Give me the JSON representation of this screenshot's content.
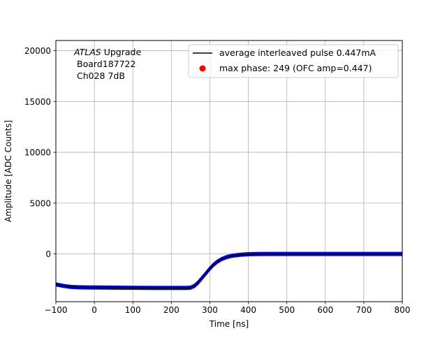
{
  "chart_data": {
    "type": "line",
    "xlabel": "Time [ns]",
    "ylabel": "Amplitude [ADC Counts]",
    "xlim": [
      -100,
      800
    ],
    "ylim": [
      -4700,
      21000
    ],
    "x_ticks": [
      -100,
      0,
      100,
      200,
      300,
      400,
      500,
      600,
      700,
      800
    ],
    "y_ticks": [
      0,
      5000,
      10000,
      15000,
      20000
    ],
    "grid": true,
    "legend_placement": "upper-right",
    "annotation": {
      "italic": "ATLAS",
      "suffix": " Upgrade",
      "line2": "Board187722",
      "line3": "Ch028 7dB"
    },
    "series": [
      {
        "name": "average interleaved pulse 0.447mA",
        "style": "line",
        "color": "#000000",
        "x": [
          -100,
          -80,
          -60,
          -40,
          -20,
          0,
          50,
          100,
          150,
          200,
          240,
          250,
          260,
          270,
          280,
          290,
          300,
          310,
          320,
          330,
          340,
          350,
          360,
          380,
          400,
          420,
          450,
          500,
          600,
          700,
          800
        ],
        "y": [
          -3000,
          -3150,
          -3250,
          -3280,
          -3300,
          -3300,
          -3320,
          -3330,
          -3340,
          -3340,
          -3340,
          -3320,
          -3150,
          -2800,
          -2350,
          -1900,
          -1450,
          -1050,
          -750,
          -520,
          -360,
          -250,
          -170,
          -80,
          -30,
          -10,
          0,
          0,
          0,
          0,
          0
        ]
      },
      {
        "name": "max phase: 249 (OFC amp=0.447)",
        "style": "marker",
        "color": "#ff0000"
      }
    ],
    "band": {
      "color": "#0000ff",
      "half_width": 120
    }
  }
}
